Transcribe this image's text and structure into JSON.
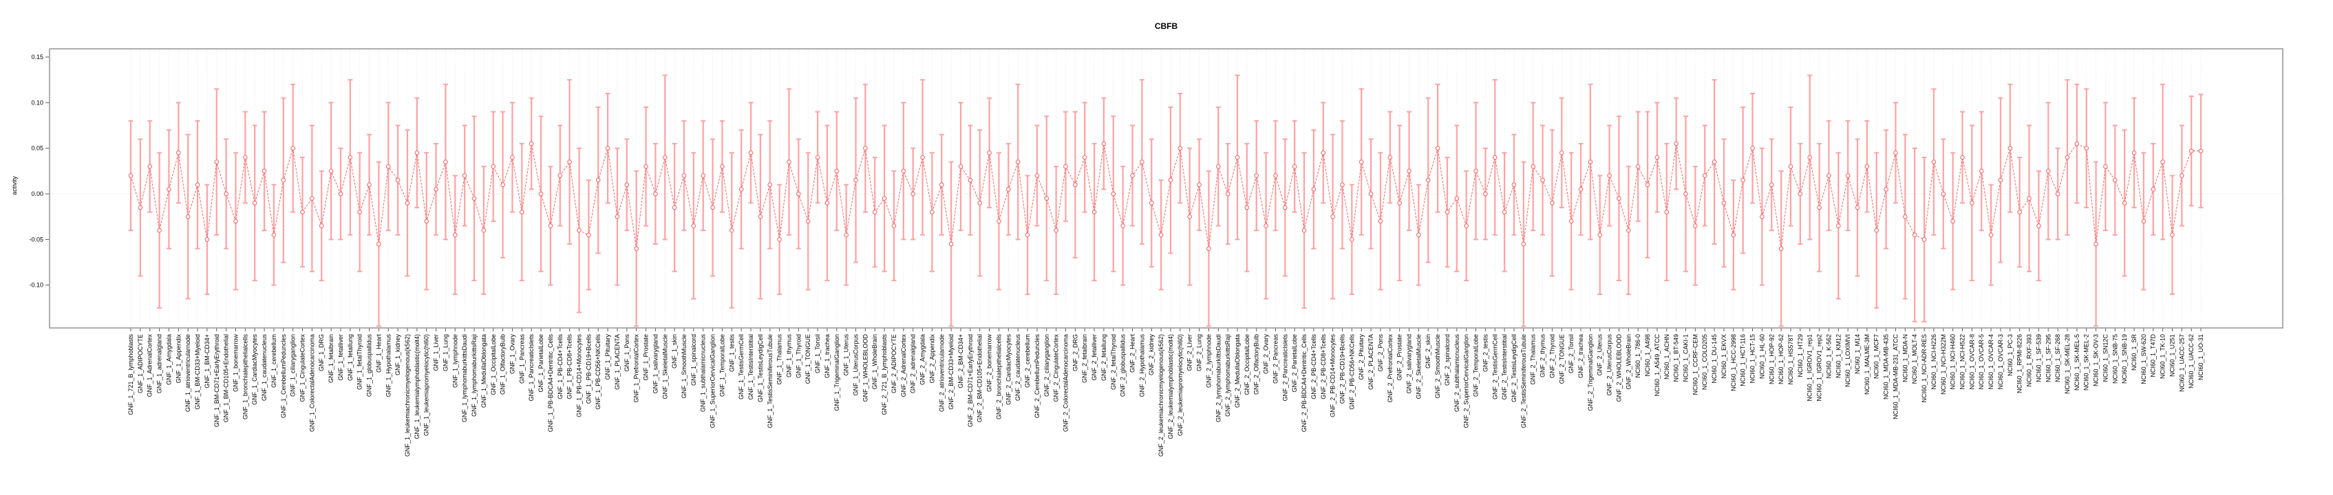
{
  "window": {
    "title": "CBFB activity plot"
  },
  "chart_data": {
    "type": "line",
    "title": "CBFB",
    "xlabel": "",
    "ylabel": "activity",
    "ylim": [
      -0.147,
      0.159
    ],
    "y_ticks": [
      0.15,
      0.1,
      0.05,
      0.0,
      -0.05,
      -0.1
    ],
    "y_tick_labels": [
      "0.15",
      "0.10",
      "0.05",
      "0.00",
      "-0.05",
      "-0.10"
    ],
    "legend_position": "none",
    "grid": "dotted vertical line per category, dotted horizontal line at 0",
    "marker": "open-circle",
    "line_style": "dashed",
    "error_bars": "symmetric with caps",
    "x_tick_label_rotation": 90,
    "colors": {
      "point_and_line": "#f15f5f",
      "error_bar": "#ffa2a2",
      "gridline": "#e3e3e3",
      "zero_line": "#d0d0d0",
      "box_border": "#9a9a9a",
      "tick": "#555555",
      "text": "#000000"
    },
    "categories": [
      "GNF_1_721_B_lymphoblasts",
      "GNF_1_ADIPOCYTE",
      "GNF_1_AdrenalCortex",
      "GNF_1_adrenalgland",
      "GNF_1_Amygdala",
      "GNF_1_Appendix",
      "GNF_1_atrioventricularnode",
      "GNF_1_BM-CD33+Myeloid",
      "GNF_1_BM-CD34+",
      "GNF_1_BM-CD71+EarlyErythroid",
      "GNF_1_BM-CD105+Endothelial",
      "GNF_1_bonemarrow",
      "GNF_1_bronchialepithelialcells",
      "GNF_1_CardiacMyocytes",
      "GNF_1_caudatenucleus",
      "GNF_1_cerebellum",
      "GNF_1_CerebellumPeduncles",
      "GNF_1_ciliaryganglion",
      "GNF_1_CingulateCortex",
      "GNF_1_ColorectalAdenocarcinoma",
      "GNF_1_DRG",
      "GNF_1_fetalbrain",
      "GNF_1_fetalliver",
      "GNF_1_fetallung",
      "GNF_1_fetalThyroid",
      "GNF_1_globuspallidus",
      "GNF_1_Heart",
      "GNF_1_Hypothalamus",
      "GNF_1_kidney",
      "GNF_1_leukemiachronicmyelogenous(k562)",
      "GNF_1_leukemialymphoblastic(molt4)",
      "GNF_1_leukemiapromyelocytic(hl60)",
      "GNF_1_Liver",
      "GNF_1_Lung",
      "GNF_1_lymphnode",
      "GNF_1_lymphomaburkittsDaudi",
      "GNF_1_lymphomaburkittsRaji",
      "GNF_1_MedullaOblongata",
      "GNF_1_OccipitalLobe",
      "GNF_1_OlfactoryBulb",
      "GNF_1_Ovary",
      "GNF_1_Pancreas",
      "GNF_1_PancreaticIslets",
      "GNF_1_ParietalLobe",
      "GNF_1_PB-BDCA4+Dentritic_Cells",
      "GNF_1_PB-CD4+Tcells",
      "GNF_1_PB-CD8+Tcells",
      "GNF_1_PB-CD14+Monocytes",
      "GNF_1_PB-CD19+Bcells",
      "GNF_1_PB-CD56+NKCells",
      "GNF_1_Pituitary",
      "GNF_1_PLACENTA",
      "GNF_1_Pons",
      "GNF_1_PrefrontalCortex",
      "GNF_1_Prostate",
      "GNF_1_salivarygland",
      "GNF_1_SkeletalMuscle",
      "GNF_1_skin",
      "GNF_1_SmoothMuscle",
      "GNF_1_spinalcord",
      "GNF_1_subthalamicnucleus",
      "GNF_1_SuperiorCervicalGanglion",
      "GNF_1_TemporalLobe",
      "GNF_1_testis",
      "GNF_1_TestisGermCell",
      "GNF_1_TestisInterstitial",
      "GNF_1_TestisLeydigCell",
      "GNF_1_TestisSeminiferousTubule",
      "GNF_1_Thalamus",
      "GNF_1_thymus",
      "GNF_1_Thyroid",
      "GNF_1_TONGUE",
      "GNF_1_Tonsil",
      "GNF_1_trachea",
      "GNF_1_TrigeminalGanglion",
      "GNF_1_Uterus",
      "GNF_1_UterusCorpus",
      "GNF_1_WHOLEBLOOD",
      "GNF_1_WholeBrain",
      "GNF_2_721_B_lymphoblasts",
      "GNF_2_ADIPOCYTE",
      "GNF_2_AdrenalCortex",
      "GNF_2_adrenalgland",
      "GNF_2_Amygdala",
      "GNF_2_Appendix",
      "GNF_2_atrioventricularnode",
      "GNF_2_BM-CD33+Myeloid",
      "GNF_2_BM-CD34+",
      "GNF_2_BM-CD71+EarlyErythroid",
      "GNF_2_BM-CD105+Endothelial",
      "GNF_2_bonemarrow",
      "GNF_2_bronchialepithelialcells",
      "GNF_2_CardiacMyocytes",
      "GNF_2_caudatenucleus",
      "GNF_2_cerebellum",
      "GNF_2_CerebellumPeduncles",
      "GNF_2_ciliaryganglion",
      "GNF_2_CingulateCortex",
      "GNF_2_ColorectalAdenocarcinoma",
      "GNF_2_DRG",
      "GNF_2_fetalbrain",
      "GNF_2_fetalliver",
      "GNF_2_fetallung",
      "GNF_2_fetalThyroid",
      "GNF_2_globuspallidus",
      "GNF_2_Heart",
      "GNF_2_Hypothalamus",
      "GNF_2_kidney",
      "GNF_2_leukemiachronicmyelogenous(k562)",
      "GNF_2_leukemialymphoblastic(molt4)",
      "GNF_2_leukemiapromyelocytic(hl60)",
      "GNF_2_Liver",
      "GNF_2_Lung",
      "GNF_2_lymphnode",
      "GNF_2_lymphomaburkittsDaudi",
      "GNF_2_lymphomaburkittsRaji",
      "GNF_2_MedullaOblongata",
      "GNF_2_OccipitalLobe",
      "GNF_2_OlfactoryBulb",
      "GNF_2_Ovary",
      "GNF_2_Pancreas",
      "GNF_2_PancreaticIslets",
      "GNF_2_ParietalLobe",
      "GNF_2_PB-BDCA4+Dentritic_Cells",
      "GNF_2_PB-CD4+Tcells",
      "GNF_2_PB-CD8+Tcells",
      "GNF_2_PB-CD14+Monocytes",
      "GNF_2_PB-CD19+Bcells",
      "GNF_2_PB-CD56+NKCells",
      "GNF_2_Pituitary",
      "GNF_2_PLACENTA",
      "GNF_2_Pons",
      "GNF_2_PrefrontalCortex",
      "GNF_2_Prostate",
      "GNF_2_salivarygland",
      "GNF_2_SkeletalMuscle",
      "GNF_2_skin",
      "GNF_2_SmoothMuscle",
      "GNF_2_spinalcord",
      "GNF_2_subthalamicnucleus",
      "GNF_2_SuperiorCervicalGanglion",
      "GNF_2_TemporalLobe",
      "GNF_2_testis",
      "GNF_2_TestisGermCell",
      "GNF_2_TestisInterstitial",
      "GNF_2_TestisLeydigCell",
      "GNF_2_TestisSeminiferousTubule",
      "GNF_2_Thalamus",
      "GNF_2_thymus",
      "GNF_2_Thyroid",
      "GNF_2_TONGUE",
      "GNF_2_Tonsil",
      "GNF_2_trachea",
      "GNF_2_TrigeminalGanglion",
      "GNF_2_Uterus",
      "GNF_2_UterusCorpus",
      "GNF_2_WHOLEBLOOD",
      "GNF_2_WholeBrain",
      "NCI60_1_786-0",
      "NCI60_1_A498",
      "NCI60_1_A549_ATCC",
      "NCI60_1_ACHN",
      "NCI60_1_BT-549",
      "NCI60_1_CAKI-1",
      "NCI60_1_CCRF-CEM",
      "NCI60_1_COLO205",
      "NCI60_1_DU-145",
      "NCI60_1_EKVX",
      "NCI60_1_HCC-2998",
      "NCI60_1_HCT-116",
      "NCI60_1_HCT-15",
      "NCI60_1_HL-60",
      "NCI60_1_HOP-92",
      "NCI60_1_HOP-62",
      "NCI60_1_HS578T",
      "NCI60_1_HT29",
      "NCI60_1_IGROV1_rep1",
      "NCI60_1_IGROV1_rep2",
      "NCI60_1_K-562",
      "NCI60_1_KM12",
      "NCI60_1_LOXIMVI",
      "NCI60_1_M14",
      "NCI60_1_MALME-3M",
      "NCI60_1_MCF7",
      "NCI60_1_MDA-MB-435",
      "NCI60_1_MDA-MB-231_ATCC",
      "NCI60_1_MDA-N",
      "NCI60_1_MOLT-4",
      "NCI60_1_NCI-ADR-RES",
      "NCI60_1_NCI-H226",
      "NCI60_1_NCI-H322M",
      "NCI60_1_NCI-H460",
      "NCI60_1_NCI-H522",
      "NCI60_1_OVCAR-8",
      "NCI60_1_OVCAR-5",
      "NCI60_1_OVCAR-4",
      "NCI60_1_OVCAR-3",
      "NCI60_1_PC-3",
      "NCI60_1_RPMI-8226",
      "NCI60_1_RXF-393",
      "NCI60_1_SF-539",
      "NCI60_1_SF-295",
      "NCI60_1_SF-268",
      "NCI60_1_SK-MEL-28",
      "NCI60_1_SK-MEL-5",
      "NCI60_1_SK-MEL-2",
      "NCI60_1_SK-OV-3",
      "NCI60_1_SN12C",
      "NCI60_1_SNB-75",
      "NCI60_1_SNB-19",
      "NCI60_1_SR",
      "NCI60_1_SW-620",
      "NCI60_1_T47D",
      "NCI60_1_TK-10",
      "NCI60_1_U251",
      "NCI60_1_UACC-257",
      "NCI60_1_UACC-62",
      "NCI60_1_UO-31"
    ],
    "values": [
      0.02,
      -0.015,
      0.03,
      -0.04,
      0.005,
      0.045,
      -0.025,
      0.01,
      -0.05,
      0.035,
      0,
      -0.03,
      0.04,
      -0.01,
      0.025,
      -0.045,
      0.015,
      0.05,
      -0.02,
      -0.005,
      -0.035,
      0.025,
      0,
      0.04,
      -0.02,
      0.01,
      -0.055,
      0.03,
      0.015,
      -0.01,
      0.045,
      -0.03,
      0.005,
      0.035,
      -0.045,
      0.02,
      -0.005,
      -0.04,
      0.03,
      0.01,
      0.04,
      -0.02,
      0.055,
      0,
      -0.035,
      0.02,
      0.035,
      -0.04,
      -0.045,
      0.015,
      0.05,
      -0.025,
      0.01,
      -0.06,
      0.03,
      0,
      0.04,
      -0.015,
      0.02,
      -0.035,
      0.02,
      -0.015,
      0.03,
      -0.04,
      0.005,
      0.045,
      -0.025,
      0.01,
      -0.05,
      0.035,
      0,
      -0.03,
      0.04,
      -0.01,
      0.025,
      -0.045,
      0.015,
      0.05,
      -0.02,
      -0.005,
      -0.035,
      0.025,
      0,
      0.04,
      -0.02,
      0.01,
      -0.055,
      0.03,
      0.015,
      -0.01,
      0.045,
      -0.03,
      0.005,
      0.035,
      -0.045,
      0.02,
      -0.005,
      -0.04,
      0.03,
      0.01,
      0.04,
      -0.02,
      0.055,
      0,
      -0.035,
      0.02,
      0.035,
      -0.01,
      -0.045,
      0.015,
      0.05,
      -0.025,
      0.01,
      -0.06,
      0.03,
      0,
      0.04,
      -0.015,
      0.02,
      -0.035,
      0.02,
      -0.015,
      0.03,
      -0.04,
      0.005,
      0.045,
      -0.025,
      0.01,
      -0.05,
      0.035,
      0,
      -0.03,
      0.04,
      -0.01,
      0.025,
      -0.045,
      0.015,
      0.05,
      -0.02,
      -0.005,
      -0.035,
      0.025,
      0,
      0.04,
      -0.02,
      0.01,
      -0.055,
      0.03,
      0.015,
      -0.01,
      0.045,
      -0.03,
      0.005,
      0.035,
      -0.045,
      0.02,
      -0.005,
      -0.04,
      0.03,
      0.01,
      0.04,
      -0.02,
      0.055,
      0,
      -0.035,
      0.02,
      0.035,
      -0.01,
      -0.045,
      0.015,
      0.05,
      -0.025,
      0.01,
      -0.06,
      0.03,
      0,
      0.04,
      -0.015,
      0.02,
      -0.035,
      0.02,
      -0.015,
      0.03,
      -0.04,
      0.005,
      0.045,
      -0.025,
      -0.045,
      -0.05,
      0.035,
      0,
      -0.03,
      0.04,
      -0.01,
      0.025,
      -0.045,
      0.015,
      0.05,
      -0.02,
      -0.005,
      -0.035,
      0.025,
      0,
      0.04,
      0.055,
      0.05,
      -0.055,
      0.03,
      0.015,
      -0.01,
      0.045,
      -0.03,
      0.005,
      0.035,
      -0.045,
      0.02,
      0.047,
      0.047
    ],
    "ci_halfwidth": [
      0.06,
      0.075,
      0.05,
      0.085,
      0.065,
      0.055,
      0.09,
      0.07,
      0.06,
      0.08,
      0.06,
      0.075,
      0.05,
      0.085,
      0.065,
      0.055,
      0.09,
      0.07,
      0.06,
      0.08,
      0.06,
      0.075,
      0.05,
      0.085,
      0.065,
      0.055,
      0.09,
      0.07,
      0.06,
      0.08,
      0.06,
      0.075,
      0.05,
      0.085,
      0.065,
      0.055,
      0.09,
      0.07,
      0.06,
      0.08,
      0.06,
      0.075,
      0.05,
      0.085,
      0.065,
      0.055,
      0.09,
      0.09,
      0.06,
      0.08,
      0.06,
      0.075,
      0.05,
      0.085,
      0.065,
      0.055,
      0.09,
      0.07,
      0.06,
      0.08,
      0.06,
      0.075,
      0.05,
      0.085,
      0.065,
      0.055,
      0.09,
      0.07,
      0.06,
      0.08,
      0.06,
      0.075,
      0.05,
      0.085,
      0.065,
      0.055,
      0.09,
      0.07,
      0.06,
      0.08,
      0.06,
      0.075,
      0.05,
      0.085,
      0.065,
      0.055,
      0.09,
      0.07,
      0.06,
      0.08,
      0.06,
      0.075,
      0.05,
      0.085,
      0.065,
      0.055,
      0.09,
      0.07,
      0.06,
      0.08,
      0.06,
      0.075,
      0.05,
      0.085,
      0.065,
      0.055,
      0.09,
      0.07,
      0.06,
      0.08,
      0.06,
      0.075,
      0.05,
      0.085,
      0.065,
      0.055,
      0.09,
      0.07,
      0.06,
      0.08,
      0.06,
      0.075,
      0.05,
      0.085,
      0.065,
      0.055,
      0.09,
      0.07,
      0.06,
      0.08,
      0.06,
      0.075,
      0.05,
      0.085,
      0.065,
      0.055,
      0.09,
      0.07,
      0.06,
      0.08,
      0.06,
      0.075,
      0.05,
      0.085,
      0.065,
      0.055,
      0.09,
      0.07,
      0.06,
      0.08,
      0.06,
      0.075,
      0.05,
      0.085,
      0.065,
      0.055,
      0.09,
      0.07,
      0.06,
      0.08,
      0.06,
      0.075,
      0.05,
      0.085,
      0.065,
      0.055,
      0.09,
      0.07,
      0.06,
      0.08,
      0.06,
      0.075,
      0.05,
      0.085,
      0.065,
      0.055,
      0.09,
      0.07,
      0.06,
      0.08,
      0.06,
      0.075,
      0.05,
      0.085,
      0.065,
      0.055,
      0.09,
      0.095,
      0.09,
      0.08,
      0.06,
      0.075,
      0.05,
      0.085,
      0.065,
      0.055,
      0.09,
      0.07,
      0.06,
      0.08,
      0.06,
      0.075,
      0.05,
      0.085,
      0.065,
      0.065,
      0.09,
      0.07,
      0.06,
      0.08,
      0.06,
      0.075,
      0.05,
      0.085,
      0.065,
      0.055,
      0.06,
      0.062
    ]
  }
}
